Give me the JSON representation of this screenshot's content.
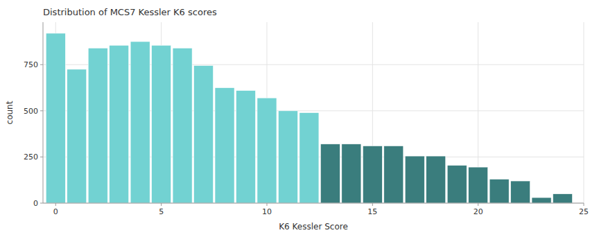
{
  "chart_data": {
    "type": "bar",
    "title": "Distribution of MCS7 Kessler K6 scores",
    "x_label": "K6 Kessler Score",
    "y_label": "count",
    "x": [
      0,
      1,
      2,
      3,
      4,
      5,
      6,
      7,
      8,
      9,
      10,
      11,
      12,
      13,
      14,
      15,
      16,
      17,
      18,
      19,
      20,
      21,
      22,
      23,
      24
    ],
    "values": [
      920,
      725,
      840,
      855,
      875,
      855,
      840,
      745,
      625,
      610,
      570,
      500,
      490,
      320,
      320,
      310,
      310,
      255,
      255,
      205,
      195,
      130,
      120,
      30,
      50
    ],
    "colors": [
      "#72d2d2",
      "#72d2d2",
      "#72d2d2",
      "#72d2d2",
      "#72d2d2",
      "#72d2d2",
      "#72d2d2",
      "#72d2d2",
      "#72d2d2",
      "#72d2d2",
      "#72d2d2",
      "#72d2d2",
      "#72d2d2",
      "#3a7d7d",
      "#3a7d7d",
      "#3a7d7d",
      "#3a7d7d",
      "#3a7d7d",
      "#3a7d7d",
      "#3a7d7d",
      "#3a7d7d",
      "#3a7d7d",
      "#3a7d7d",
      "#3a7d7d",
      "#3a7d7d"
    ],
    "xlim": [
      -0.6,
      25
    ],
    "xticks": [
      0,
      5,
      10,
      15,
      20,
      25
    ],
    "ylim": [
      0,
      980
    ],
    "yticks": [
      0,
      250,
      500,
      750
    ],
    "grid": true
  }
}
